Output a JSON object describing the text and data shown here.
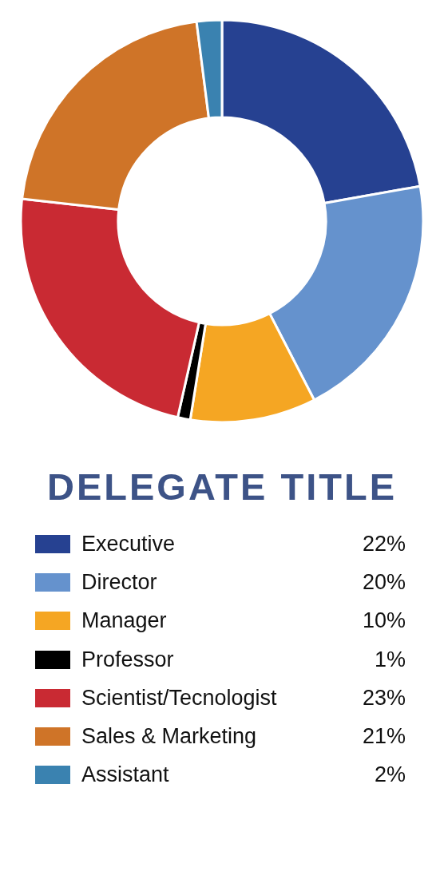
{
  "chart_data": {
    "type": "donut",
    "title": "DELEGATE TITLE",
    "categories": [
      "Executive",
      "Director",
      "Manager",
      "Professor",
      "Scientist/Tecnologist",
      "Sales & Marketing",
      "Assistant"
    ],
    "values": [
      22,
      20,
      10,
      1,
      23,
      21,
      2
    ],
    "value_labels": [
      "22%",
      "20%",
      "10%",
      "1%",
      "23%",
      "21%",
      "2%"
    ],
    "colors": [
      "#264191",
      "#6592cd",
      "#f5a623",
      "#000000",
      "#c92a33",
      "#cf7428",
      "#3a82b0"
    ],
    "legend": "bottom"
  }
}
